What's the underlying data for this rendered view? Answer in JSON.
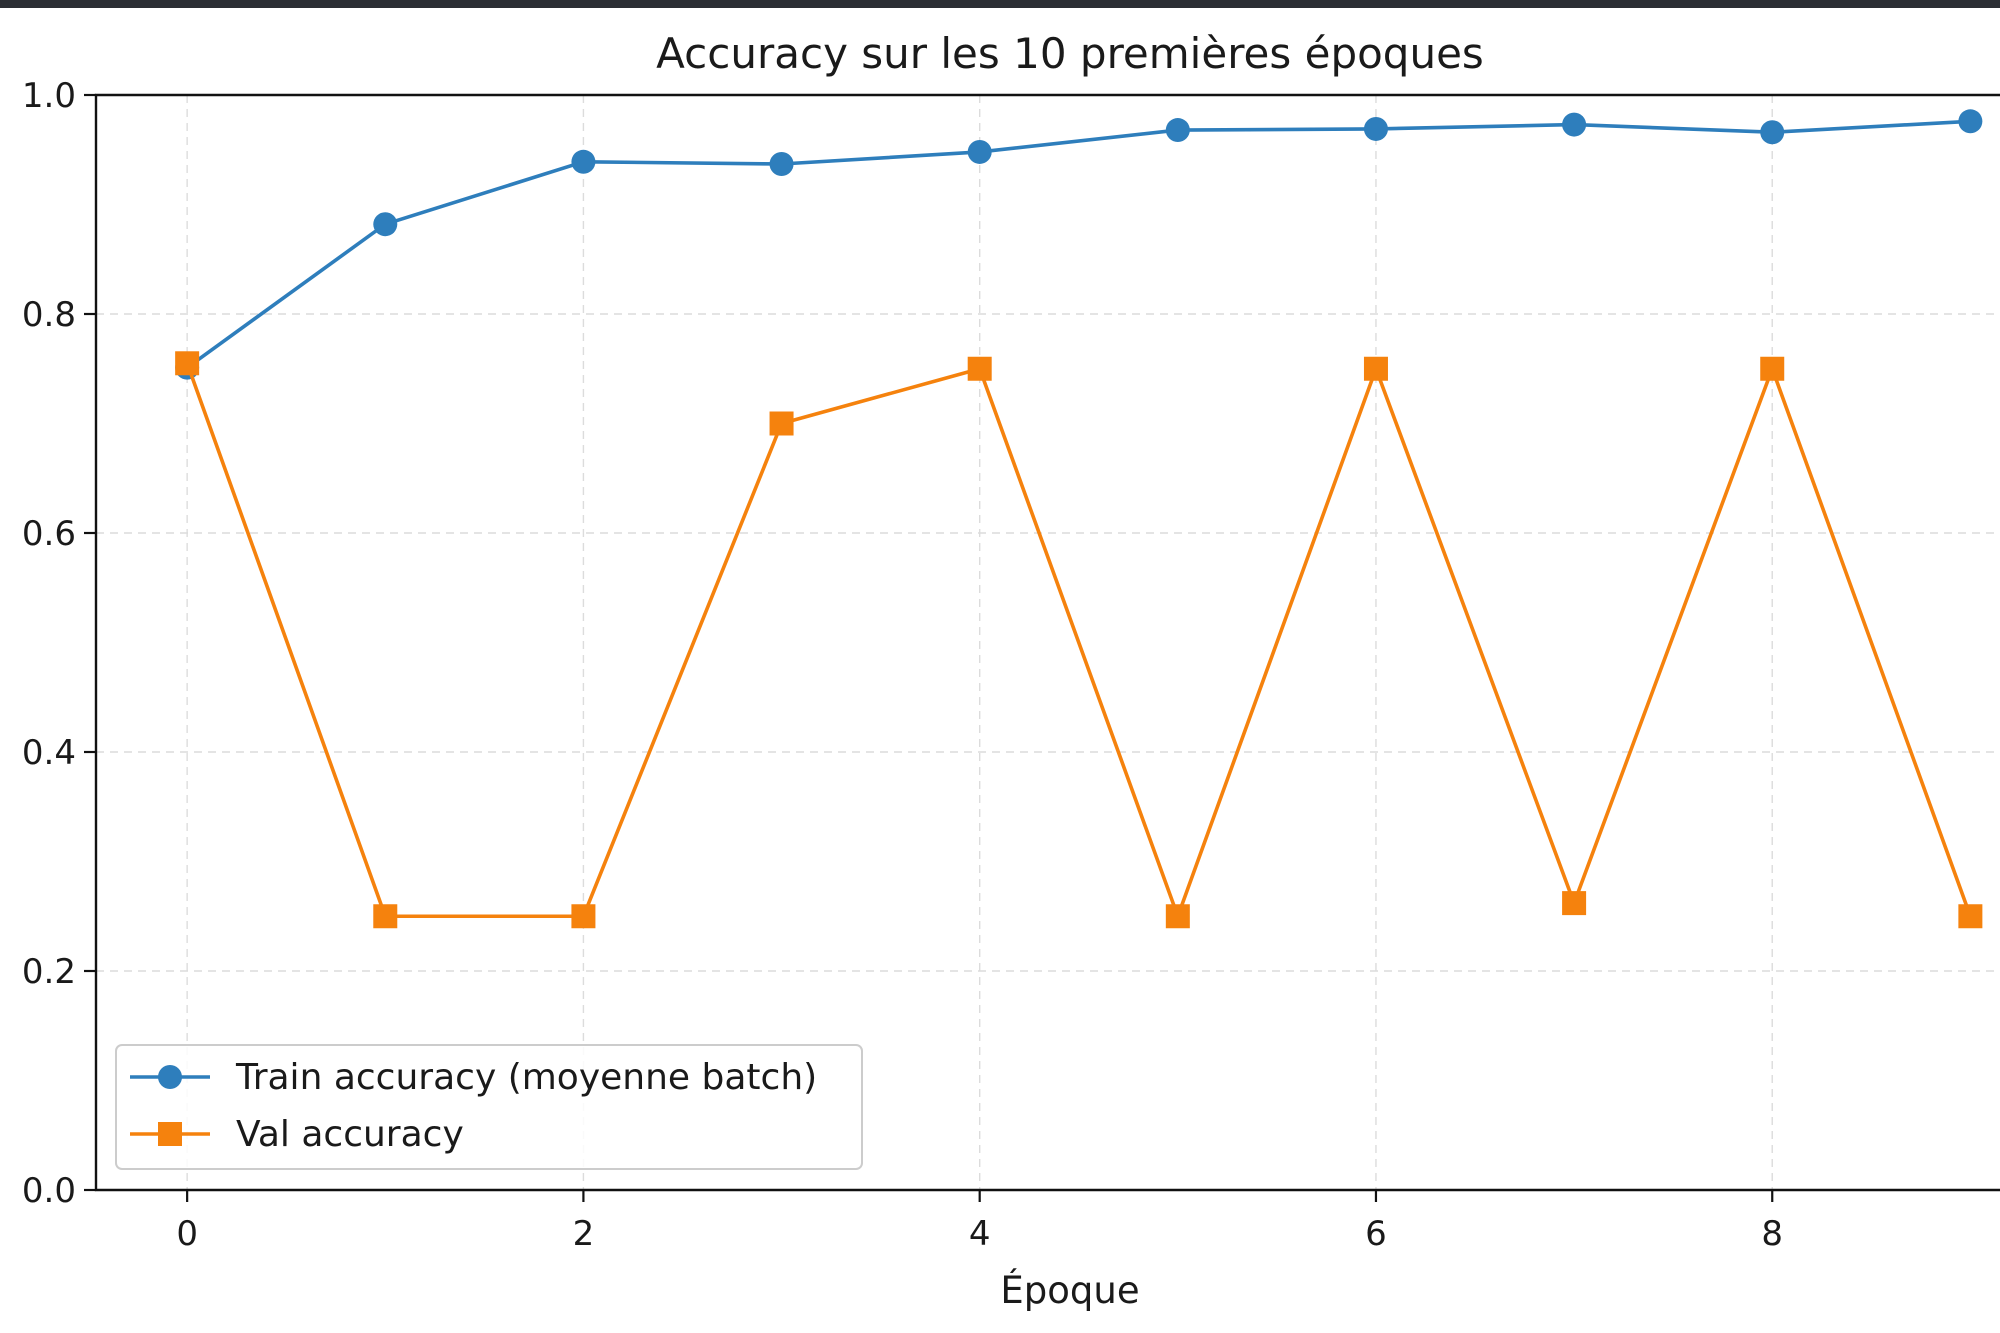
{
  "chart_data": {
    "type": "line",
    "title": "Accuracy sur les 10 premières époques",
    "xlabel": "Époque",
    "ylabel": "",
    "x": [
      0,
      1,
      2,
      3,
      4,
      5,
      6,
      7,
      8,
      9
    ],
    "xlim": [
      -0.46,
      9.2
    ],
    "ylim": [
      0.0,
      1.0
    ],
    "xticks": [
      0,
      2,
      4,
      6,
      8
    ],
    "yticks": [
      0.0,
      0.2,
      0.4,
      0.6,
      0.8,
      1.0
    ],
    "xtick_labels": [
      "0",
      "2",
      "4",
      "6",
      "8"
    ],
    "ytick_labels": [
      "0.0",
      "0.2",
      "0.4",
      "0.6",
      "0.8",
      "1.0"
    ],
    "grid": true,
    "legend_position": "lower-left",
    "series": [
      {
        "name": "Train accuracy (moyenne batch)",
        "marker": "circle",
        "color": "#2e7ebc",
        "values": [
          0.751,
          0.882,
          0.939,
          0.937,
          0.948,
          0.968,
          0.969,
          0.973,
          0.966,
          0.976
        ]
      },
      {
        "name": "Val accuracy",
        "marker": "square",
        "color": "#f5820d",
        "values": [
          0.755,
          0.25,
          0.25,
          0.7,
          0.75,
          0.25,
          0.75,
          0.262,
          0.75,
          0.25
        ]
      }
    ]
  }
}
